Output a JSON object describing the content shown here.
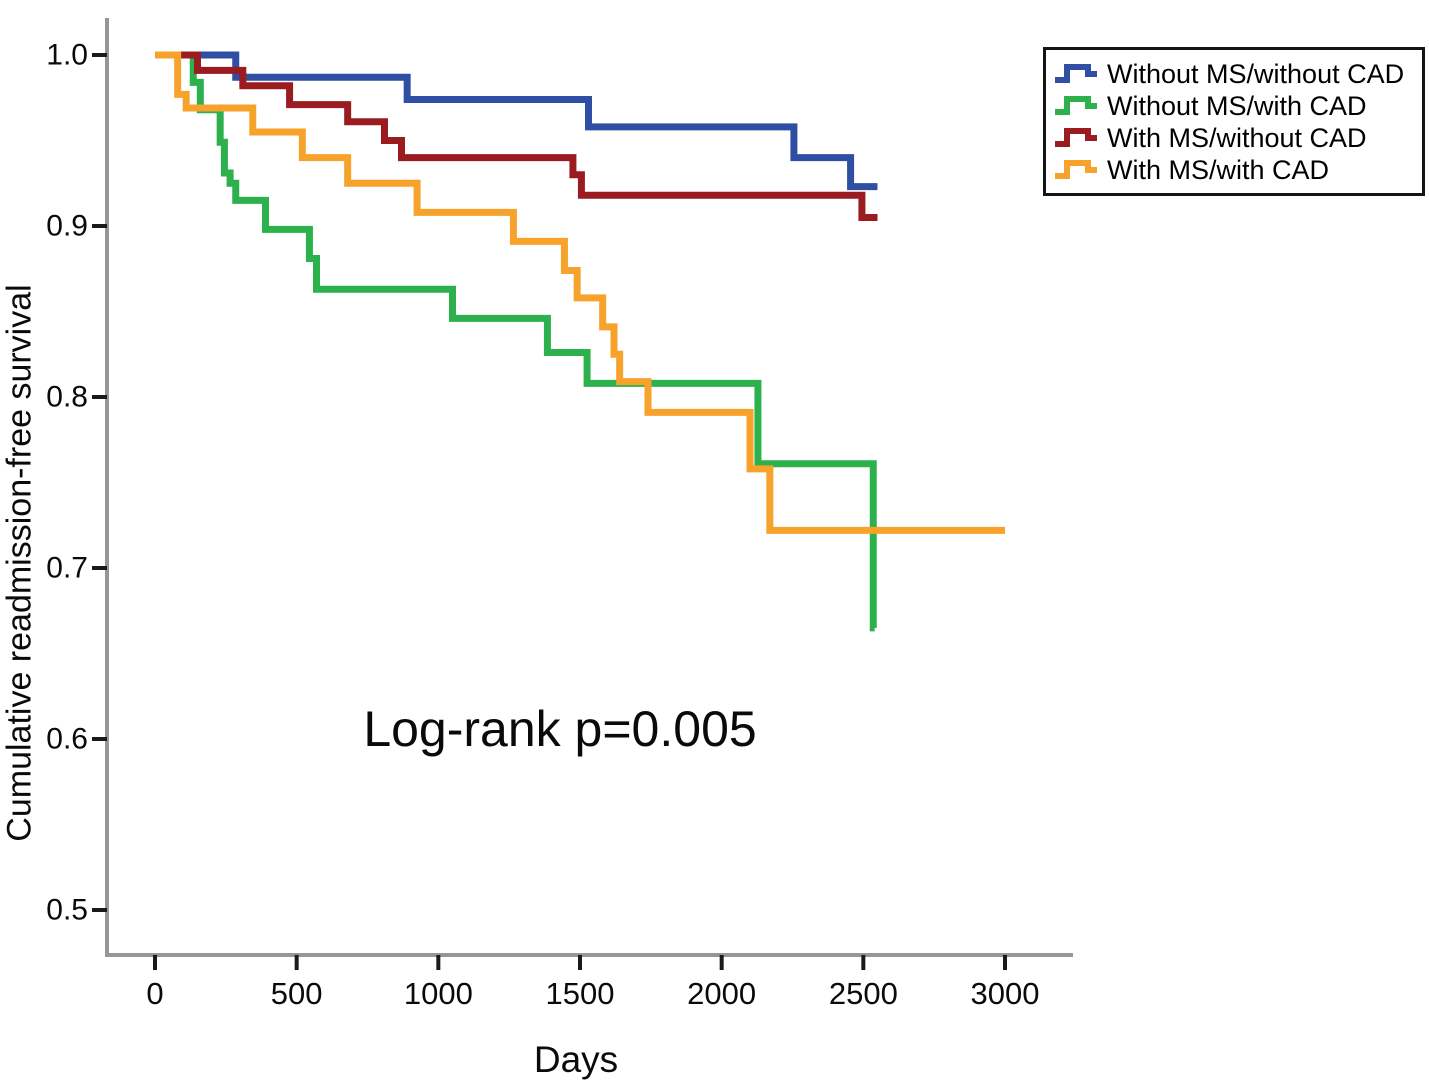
{
  "chart_data": {
    "type": "line",
    "subtype": "kaplan-meier-step",
    "xlabel": "Days",
    "ylabel": "Cumulative readmission-free survival",
    "annotation": "Log-rank p=0.005",
    "xlim": [
      0,
      3000
    ],
    "ylim": [
      0.5,
      1.0
    ],
    "grid": false,
    "legend_position": "top-right",
    "xticks": [
      0,
      500,
      1000,
      1500,
      2000,
      2500,
      3000
    ],
    "yticks": [
      {
        "label": "1.0",
        "value": 1.0
      },
      {
        "label": "0.9",
        "value": 0.9
      },
      {
        "label": "0.8",
        "value": 0.8
      },
      {
        "label": "0.7",
        "value": 0.7
      },
      {
        "label": "0.6",
        "value": 0.6
      },
      {
        "label": "0.5",
        "value": 0.5
      }
    ],
    "colors": {
      "axis_line": "#969696",
      "tick_mark": "#1a1a1a",
      "text": "#0a0a0a"
    },
    "series": [
      {
        "name": "Without MS/without CAD",
        "color": "#2e4fa3",
        "end_day": 2550,
        "steps": [
          [
            0,
            1.0
          ],
          [
            285,
            0.987
          ],
          [
            890,
            0.974
          ],
          [
            1530,
            0.958
          ],
          [
            2255,
            0.94
          ],
          [
            2455,
            0.923
          ]
        ]
      },
      {
        "name": "Without MS/with CAD",
        "color": "#2cb14c",
        "end_day": 2540,
        "steps": [
          [
            0,
            1.0
          ],
          [
            135,
            0.984
          ],
          [
            160,
            0.968
          ],
          [
            230,
            0.949
          ],
          [
            245,
            0.931
          ],
          [
            265,
            0.925
          ],
          [
            285,
            0.915
          ],
          [
            390,
            0.898
          ],
          [
            545,
            0.881
          ],
          [
            570,
            0.863
          ],
          [
            1050,
            0.846
          ],
          [
            1385,
            0.826
          ],
          [
            1525,
            0.808
          ],
          [
            2128,
            0.761
          ],
          [
            2535,
            0.665
          ]
        ]
      },
      {
        "name": "With MS/without CAD",
        "color": "#9a1b20",
        "end_day": 2550,
        "steps": [
          [
            0,
            1.0
          ],
          [
            150,
            0.991
          ],
          [
            310,
            0.982
          ],
          [
            475,
            0.971
          ],
          [
            680,
            0.961
          ],
          [
            810,
            0.95
          ],
          [
            870,
            0.94
          ],
          [
            1475,
            0.93
          ],
          [
            1505,
            0.918
          ],
          [
            2495,
            0.905
          ]
        ]
      },
      {
        "name": "With MS/with CAD",
        "color": "#f6a22b",
        "end_day": 3000,
        "steps": [
          [
            0,
            1.0
          ],
          [
            80,
            0.977
          ],
          [
            110,
            0.969
          ],
          [
            345,
            0.955
          ],
          [
            520,
            0.94
          ],
          [
            680,
            0.925
          ],
          [
            925,
            0.908
          ],
          [
            1265,
            0.891
          ],
          [
            1445,
            0.874
          ],
          [
            1490,
            0.858
          ],
          [
            1580,
            0.841
          ],
          [
            1620,
            0.825
          ],
          [
            1640,
            0.809
          ],
          [
            1740,
            0.791
          ],
          [
            2100,
            0.758
          ],
          [
            2170,
            0.722
          ]
        ]
      }
    ]
  }
}
